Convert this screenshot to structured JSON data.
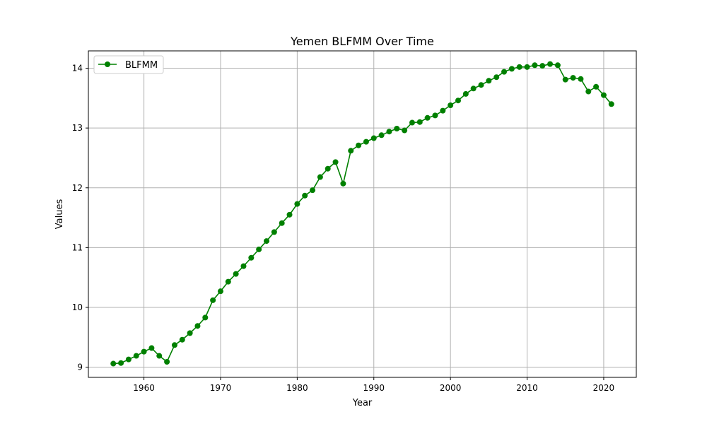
{
  "chart_data": {
    "type": "line",
    "title": "Yemen BLFMM Over Time",
    "xlabel": "Year",
    "ylabel": "Values",
    "xlim": [
      1952.75,
      2024.25
    ],
    "ylim": [
      8.83,
      14.29
    ],
    "xticks": [
      1960,
      1970,
      1980,
      1990,
      2000,
      2010,
      2020
    ],
    "yticks": [
      9,
      10,
      11,
      12,
      13,
      14
    ],
    "grid": true,
    "legend_position": "top-left",
    "colors": {
      "series": "#008000",
      "grid": "#b0b0b0",
      "axes": "#000000"
    },
    "series": [
      {
        "name": "BLFMM",
        "marker": "circle",
        "x": [
          1956,
          1957,
          1958,
          1959,
          1960,
          1961,
          1962,
          1963,
          1964,
          1965,
          1966,
          1967,
          1968,
          1969,
          1970,
          1971,
          1972,
          1973,
          1974,
          1975,
          1976,
          1977,
          1978,
          1979,
          1980,
          1981,
          1982,
          1983,
          1984,
          1985,
          1986,
          1987,
          1988,
          1989,
          1990,
          1991,
          1992,
          1993,
          1994,
          1995,
          1996,
          1997,
          1998,
          1999,
          2000,
          2001,
          2002,
          2003,
          2004,
          2005,
          2006,
          2007,
          2008,
          2009,
          2010,
          2011,
          2012,
          2013,
          2014,
          2015,
          2016,
          2017,
          2018,
          2019,
          2020,
          2021
        ],
        "values": [
          9.06,
          9.07,
          9.13,
          9.19,
          9.26,
          9.32,
          9.19,
          9.09,
          9.37,
          9.46,
          9.57,
          9.69,
          9.83,
          10.12,
          10.27,
          10.43,
          10.56,
          10.69,
          10.83,
          10.97,
          11.11,
          11.26,
          11.41,
          11.55,
          11.73,
          11.87,
          11.96,
          12.18,
          12.32,
          12.43,
          12.07,
          12.62,
          12.71,
          12.77,
          12.83,
          12.88,
          12.94,
          12.99,
          12.96,
          13.09,
          13.1,
          13.17,
          13.21,
          13.29,
          13.38,
          13.46,
          13.57,
          13.66,
          13.72,
          13.79,
          13.85,
          13.94,
          13.99,
          14.02,
          14.02,
          14.05,
          14.04,
          14.07,
          14.05,
          13.81,
          13.84,
          13.82,
          13.61,
          13.69,
          13.55,
          13.4
        ]
      }
    ]
  }
}
